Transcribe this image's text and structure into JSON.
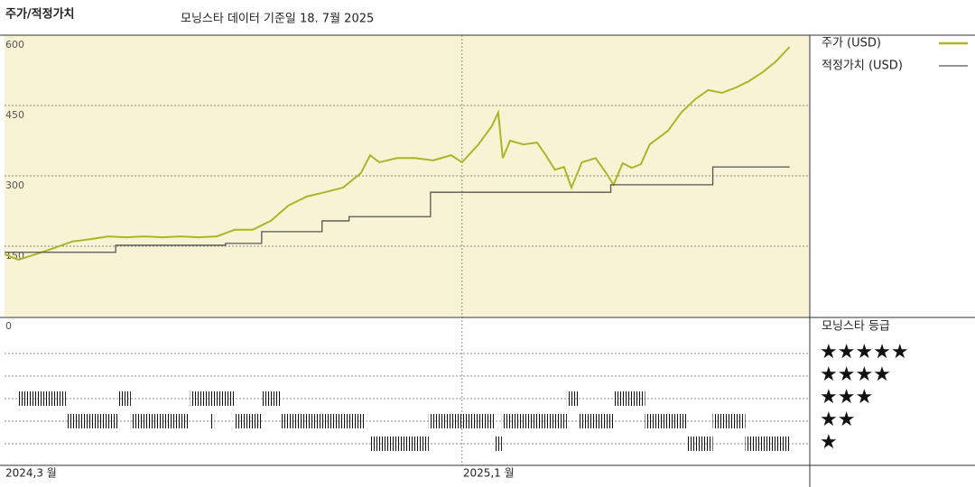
{
  "chart_data": [
    {
      "type": "line",
      "title": "주가/적정가치",
      "subtitle": "모닝스타 데이터 기준일 18. 7월 2025",
      "xlim": [
        0,
        17.6
      ],
      "ylim": [
        0,
        600
      ],
      "yticks": [
        0,
        150,
        300,
        450,
        600
      ],
      "grid": true,
      "background": "#f7f3d4",
      "series": [
        {
          "name": "주가 (USD)",
          "color": "#a9b628",
          "step": false,
          "x": [
            0,
            0.3,
            0.69,
            1.08,
            1.48,
            1.87,
            2.27,
            2.66,
            3.06,
            3.45,
            3.85,
            4.24,
            4.64,
            5.03,
            5.42,
            5.82,
            6.21,
            6.61,
            7.0,
            7.4,
            7.79,
            7.99,
            8.19,
            8.58,
            8.97,
            9.37,
            9.76,
            10.0,
            10.36,
            10.65,
            10.79,
            10.89,
            11.05,
            11.34,
            11.64,
            11.83,
            12.03,
            12.23,
            12.39,
            12.62,
            12.92,
            13.15,
            13.31,
            13.51,
            13.71,
            13.91,
            14.1,
            14.5,
            14.79,
            15.09,
            15.38,
            15.68,
            15.98,
            16.27,
            16.57,
            16.86,
            17.16
          ],
          "values": [
            133,
            121,
            133,
            146,
            160,
            165,
            171,
            169,
            171,
            169,
            171,
            169,
            171,
            185,
            185,
            204,
            237,
            256,
            265,
            275,
            306,
            344,
            329,
            338,
            338,
            333,
            344,
            329,
            367,
            406,
            435,
            338,
            375,
            367,
            371,
            344,
            313,
            319,
            275,
            329,
            338,
            306,
            281,
            327,
            317,
            325,
            367,
            396,
            435,
            463,
            483,
            477,
            488,
            502,
            521,
            544,
            575
          ]
        },
        {
          "name": "적정가치 (USD)",
          "color": "#555555",
          "step": true,
          "x": [
            0,
            2.43,
            4.83,
            5.62,
            6.94,
            7.53,
            9.31,
            13.25,
            15.48,
            17.16
          ],
          "values": [
            137,
            152,
            156,
            181,
            204,
            213,
            265,
            281,
            319,
            319
          ]
        }
      ]
    },
    {
      "type": "rating",
      "title": "모닝스타 등급",
      "xlim": [
        0,
        17.6
      ],
      "xticks": [
        {
          "value": 0,
          "label": "2024,3 월"
        },
        {
          "value": 10,
          "label": "2025,1 월"
        }
      ],
      "levels": [
        {
          "stars": 5,
          "label": "★★★★★"
        },
        {
          "stars": 4,
          "label": "★★★★"
        },
        {
          "stars": 3,
          "label": "★★★"
        },
        {
          "stars": 2,
          "label": "★★"
        },
        {
          "stars": 1,
          "label": "★"
        }
      ],
      "segments": [
        {
          "stars": 3,
          "start": 0.3,
          "end": 1.34
        },
        {
          "stars": 3,
          "start": 2.47,
          "end": 2.76
        },
        {
          "stars": 3,
          "start": 4.06,
          "end": 5.03
        },
        {
          "stars": 3,
          "start": 5.62,
          "end": 6.02
        },
        {
          "stars": 3,
          "start": 12.29,
          "end": 12.56
        },
        {
          "stars": 3,
          "start": 13.31,
          "end": 14.0
        },
        {
          "stars": 2,
          "start": 1.34,
          "end": 2.47
        },
        {
          "stars": 2,
          "start": 2.76,
          "end": 4.04
        },
        {
          "stars": 2,
          "start": 4.5,
          "end": 4.58
        },
        {
          "stars": 2,
          "start": 5.03,
          "end": 5.62
        },
        {
          "stars": 2,
          "start": 6.02,
          "end": 7.87
        },
        {
          "stars": 2,
          "start": 9.27,
          "end": 10.71
        },
        {
          "stars": 2,
          "start": 10.87,
          "end": 12.29
        },
        {
          "stars": 2,
          "start": 12.56,
          "end": 13.31
        },
        {
          "stars": 2,
          "start": 14.0,
          "end": 14.93
        },
        {
          "stars": 2,
          "start": 15.48,
          "end": 16.19
        },
        {
          "stars": 1,
          "start": 7.99,
          "end": 9.27
        },
        {
          "stars": 1,
          "start": 10.71,
          "end": 10.87
        },
        {
          "stars": 1,
          "start": 14.93,
          "end": 15.48
        },
        {
          "stars": 1,
          "start": 16.19,
          "end": 17.16
        }
      ]
    }
  ]
}
